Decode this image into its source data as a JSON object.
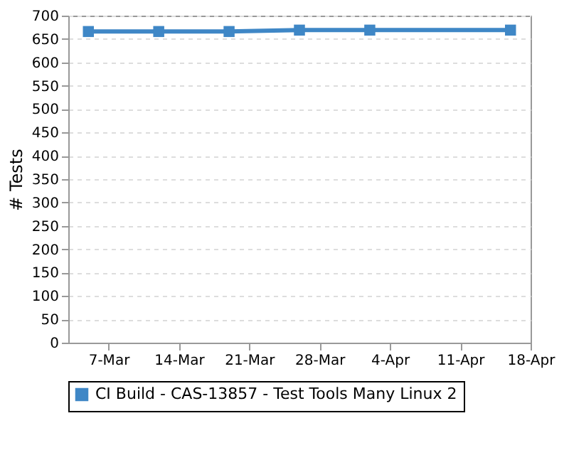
{
  "chart_data": {
    "type": "line",
    "ylabel": "# Tests",
    "x": [
      "--03-05",
      "--03-12",
      "--03-19",
      "--03-26",
      "--04-02",
      "--04-16"
    ],
    "series": [
      {
        "name": "CI Build - CAS-13857 - Test Tools Many Linux 2",
        "color": "#3f87c6",
        "values": [
          666,
          666,
          666,
          669,
          669,
          669
        ]
      }
    ],
    "xlim": [
      "--03-03",
      "--04-18"
    ],
    "xticks": [
      {
        "value": "--03-07",
        "label": "7-Mar"
      },
      {
        "value": "--03-14",
        "label": "14-Mar"
      },
      {
        "value": "--03-21",
        "label": "21-Mar"
      },
      {
        "value": "--03-28",
        "label": "28-Mar"
      },
      {
        "value": "--04-04",
        "label": "4-Apr"
      },
      {
        "value": "--04-11",
        "label": "11-Apr"
      },
      {
        "value": "--04-18",
        "label": "18-Apr"
      }
    ],
    "ylim": [
      0,
      700
    ],
    "yticks": [
      0,
      50,
      100,
      150,
      200,
      250,
      300,
      350,
      400,
      450,
      500,
      550,
      600,
      650,
      700
    ],
    "grid": "y",
    "legend": "bottom",
    "marker": "square",
    "line_style": "solid"
  }
}
